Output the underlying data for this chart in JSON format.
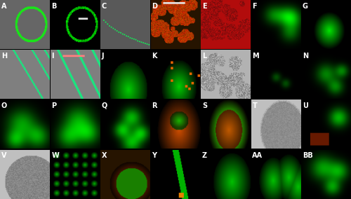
{
  "panels": [
    {
      "label": "A",
      "row": 0,
      "col": 0,
      "bg": "#1a1a1a",
      "type": "overlay_green_gray"
    },
    {
      "label": "B",
      "row": 0,
      "col": 1,
      "bg": "#000000",
      "type": "green_ring"
    },
    {
      "label": "C",
      "row": 0,
      "col": 2,
      "bg": "#1a1a1a",
      "type": "overlay_green_gray2"
    },
    {
      "label": "D",
      "row": 0,
      "col": 3,
      "bg": "#000000",
      "type": "orange_dots"
    },
    {
      "label": "E",
      "row": 0,
      "col": 4,
      "bg": "#000000",
      "type": "red_cells"
    },
    {
      "label": "F",
      "row": 0,
      "col": 5,
      "bg": "#001100",
      "type": "green_bright"
    },
    {
      "label": "G",
      "row": 0,
      "col": 6,
      "bg": "#001100",
      "type": "green_oval"
    },
    {
      "label": "H",
      "row": 1,
      "col": 0,
      "bg": "#808080",
      "type": "gray_lines_green"
    },
    {
      "label": "I",
      "row": 1,
      "col": 1,
      "bg": "#808080",
      "type": "gray_green_lines"
    },
    {
      "label": "J",
      "row": 1,
      "col": 2,
      "bg": "#001100",
      "type": "green_tip"
    },
    {
      "label": "K",
      "row": 1,
      "col": 3,
      "bg": "#001100",
      "type": "green_orange_tip"
    },
    {
      "label": "L",
      "row": 1,
      "col": 4,
      "bg": "#c0c0c0",
      "type": "gray_cells"
    },
    {
      "label": "M",
      "row": 1,
      "col": 5,
      "bg": "#000000",
      "type": "dark_green_spot"
    },
    {
      "label": "N",
      "row": 1,
      "col": 6,
      "bg": "#001100",
      "type": "green_cluster"
    },
    {
      "label": "O",
      "row": 2,
      "col": 0,
      "bg": "#001100",
      "type": "green_flowers"
    },
    {
      "label": "P",
      "row": 2,
      "col": 1,
      "bg": "#001100",
      "type": "green_flowers2"
    },
    {
      "label": "Q",
      "row": 2,
      "col": 2,
      "bg": "#001100",
      "type": "green_petals"
    },
    {
      "label": "R",
      "row": 2,
      "col": 3,
      "bg": "#000000",
      "type": "orange_green_ovule"
    },
    {
      "label": "S",
      "row": 2,
      "col": 4,
      "bg": "#000000",
      "type": "orange_green_ovule2"
    },
    {
      "label": "T",
      "row": 2,
      "col": 5,
      "bg": "#d0d0d0",
      "type": "gray_ovule"
    },
    {
      "label": "U",
      "row": 2,
      "col": 6,
      "bg": "#001100",
      "type": "green_orange_small"
    },
    {
      "label": "V",
      "row": 3,
      "col": 0,
      "bg": "#c0c0c0",
      "type": "gray_circle"
    },
    {
      "label": "W",
      "row": 3,
      "col": 1,
      "bg": "#001100",
      "type": "green_cells"
    },
    {
      "label": "X",
      "row": 3,
      "col": 2,
      "bg": "#1a0a00",
      "type": "orange_green_round"
    },
    {
      "label": "Y",
      "row": 3,
      "col": 3,
      "bg": "#000000",
      "type": "dark_green_stripe"
    },
    {
      "label": "Z",
      "row": 3,
      "col": 4,
      "bg": "#001100",
      "type": "green_oval2"
    },
    {
      "label": "AA",
      "row": 3,
      "col": 5,
      "bg": "#001100",
      "type": "green_ovals"
    },
    {
      "label": "BB",
      "row": 3,
      "col": 6,
      "bg": "#001100",
      "type": "green_seedling"
    }
  ],
  "n_rows": 4,
  "n_cols": 7,
  "label_color": "white",
  "label_fontsize": 7,
  "bar_color_orange": "#ff6600",
  "bar_color_white": "#ffffff",
  "fig_bg": "#000000"
}
